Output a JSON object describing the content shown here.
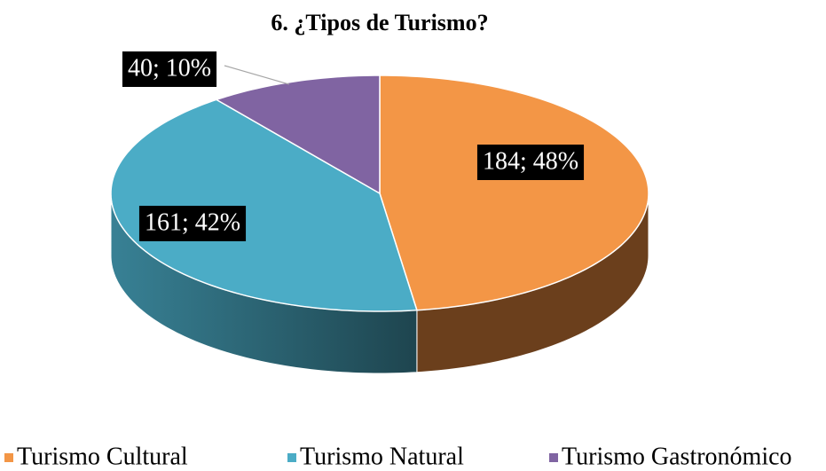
{
  "chart_data": {
    "type": "pie3d",
    "title": "6. ¿Tipos de Turismo?",
    "categories": [
      "Turismo Cultural",
      "Turismo Natural",
      "Turismo Gastronómico"
    ],
    "values": [
      184,
      161,
      40
    ],
    "value_labels": [
      "184; 48%",
      "161; 42%",
      "40; 10%"
    ],
    "colors": [
      "#f39646",
      "#4bacc6",
      "#8064a2"
    ],
    "legend": "bottom"
  }
}
